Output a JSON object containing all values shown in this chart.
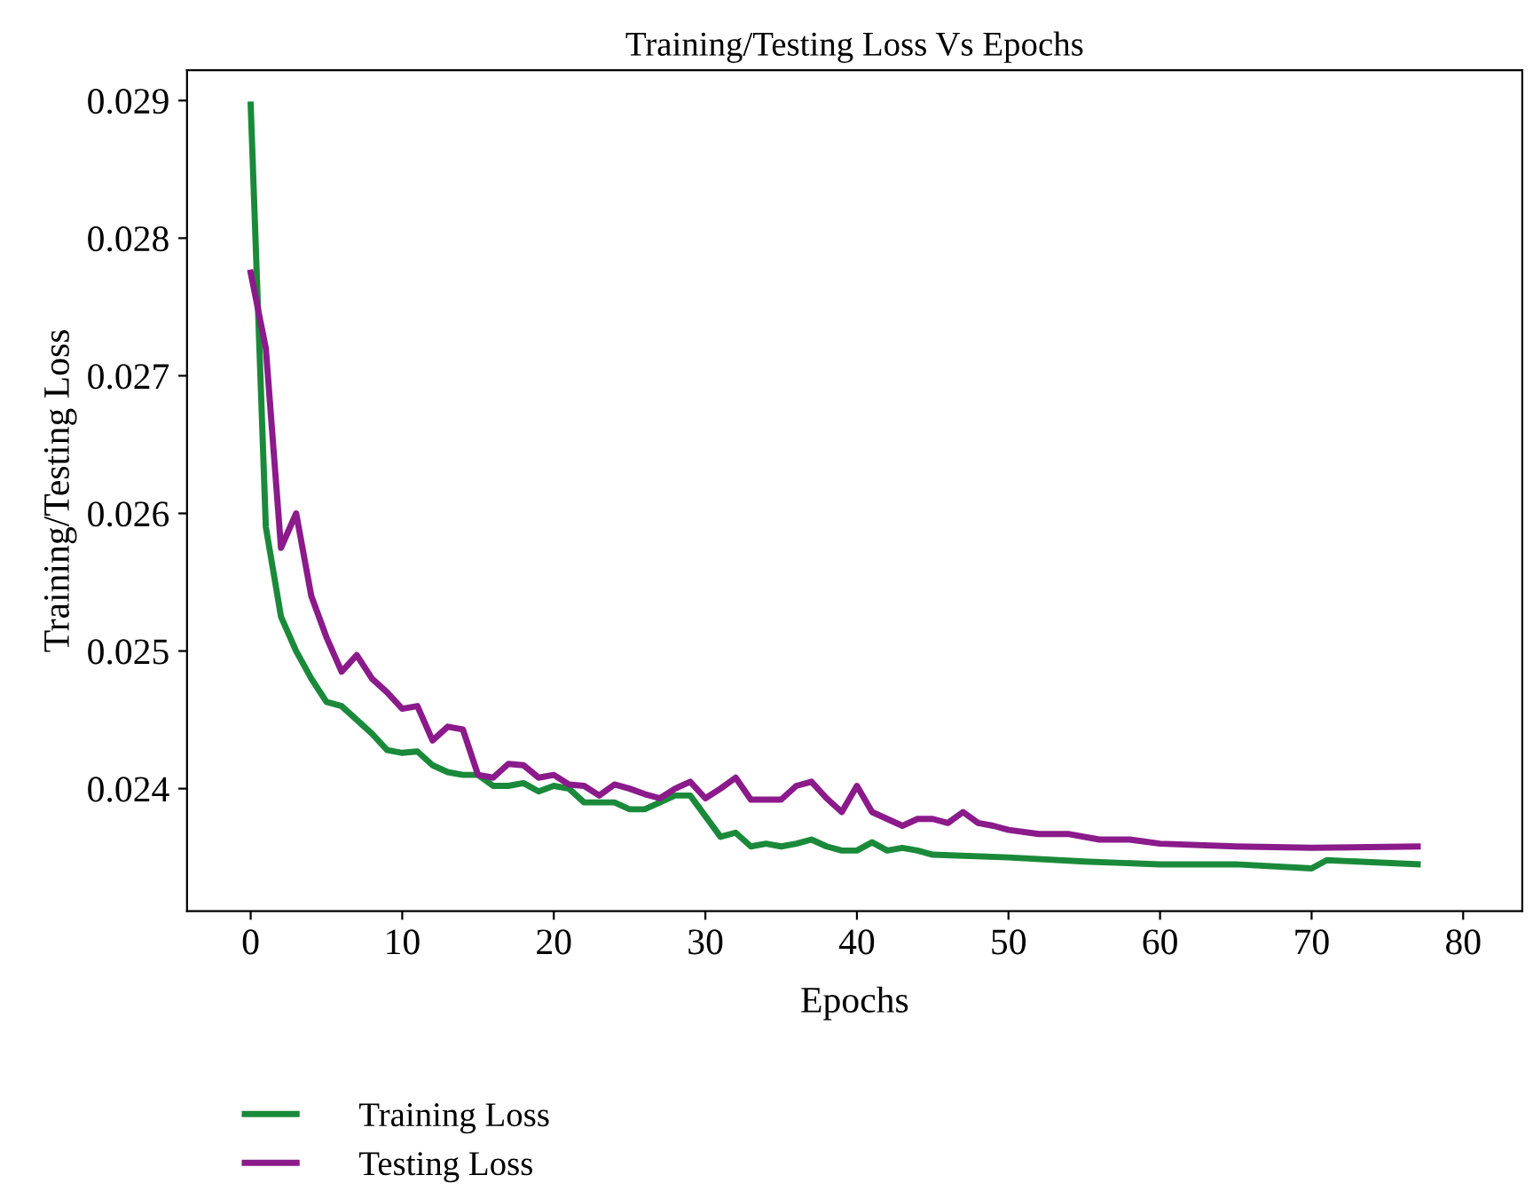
{
  "chart_data": {
    "type": "line",
    "title": "Training/Testing Loss Vs Epochs",
    "xlabel": "Epochs",
    "ylabel": "Training/Testing Loss",
    "xlim": [
      -4.2,
      83.9
    ],
    "ylim": [
      0.02311,
      0.02922
    ],
    "xticks": [
      0,
      10,
      20,
      30,
      40,
      50,
      60,
      70,
      80
    ],
    "yticks": [
      {
        "value": 0.024,
        "label": "0.024"
      },
      {
        "value": 0.025,
        "label": "0.025"
      },
      {
        "value": 0.026,
        "label": "0.026"
      },
      {
        "value": 0.027,
        "label": "0.027"
      },
      {
        "value": 0.028,
        "label": "0.028"
      },
      {
        "value": 0.029,
        "label": "0.029"
      }
    ],
    "grid": false,
    "legend": "bottom left",
    "marker": "none",
    "line_style": "solid",
    "series": [
      {
        "name": "Training Loss",
        "color": "#1a8a3a",
        "x": [
          0,
          1,
          2,
          3,
          4,
          5,
          6,
          7,
          8,
          9,
          10,
          11,
          12,
          13,
          14,
          15,
          16,
          17,
          18,
          19,
          20,
          21,
          22,
          23,
          24,
          25,
          26,
          27,
          28,
          29,
          30,
          31,
          32,
          33,
          34,
          35,
          36,
          37,
          38,
          39,
          40,
          41,
          42,
          43,
          44,
          45,
          50,
          55,
          60,
          65,
          70,
          71,
          77
        ],
        "values": [
          0.02897,
          0.0259,
          0.02525,
          0.025,
          0.0248,
          0.02463,
          0.0246,
          0.0245,
          0.0244,
          0.02428,
          0.02426,
          0.02427,
          0.02417,
          0.02412,
          0.0241,
          0.0241,
          0.02402,
          0.02402,
          0.02404,
          0.02398,
          0.02402,
          0.024,
          0.0239,
          0.0239,
          0.0239,
          0.02385,
          0.02385,
          0.0239,
          0.02395,
          0.02395,
          0.0238,
          0.02365,
          0.02368,
          0.02358,
          0.0236,
          0.02358,
          0.0236,
          0.02363,
          0.02358,
          0.02355,
          0.02355,
          0.02361,
          0.02355,
          0.02357,
          0.02355,
          0.02352,
          0.0235,
          0.02347,
          0.02345,
          0.02345,
          0.02342,
          0.02348,
          0.02345
        ]
      },
      {
        "name": "Testing Loss",
        "color": "#8b1a8b",
        "x": [
          0,
          1,
          2,
          3,
          4,
          5,
          6,
          7,
          8,
          9,
          10,
          11,
          12,
          13,
          14,
          15,
          16,
          17,
          18,
          19,
          20,
          21,
          22,
          23,
          24,
          25,
          26,
          27,
          28,
          29,
          30,
          31,
          32,
          33,
          34,
          35,
          36,
          37,
          38,
          39,
          40,
          41,
          42,
          43,
          44,
          45,
          46,
          47,
          48,
          49,
          50,
          52,
          54,
          56,
          58,
          60,
          65,
          70,
          77
        ],
        "values": [
          0.02775,
          0.0272,
          0.02575,
          0.026,
          0.0254,
          0.0251,
          0.02485,
          0.02497,
          0.0248,
          0.0247,
          0.02458,
          0.0246,
          0.02435,
          0.02445,
          0.02443,
          0.0241,
          0.02408,
          0.02418,
          0.02417,
          0.02408,
          0.0241,
          0.02403,
          0.02402,
          0.02395,
          0.02403,
          0.024,
          0.02396,
          0.02393,
          0.024,
          0.02405,
          0.02393,
          0.024,
          0.02408,
          0.02392,
          0.02392,
          0.02392,
          0.02402,
          0.02405,
          0.02393,
          0.02383,
          0.02402,
          0.02383,
          0.02378,
          0.02373,
          0.02378,
          0.02378,
          0.02375,
          0.02383,
          0.02375,
          0.02373,
          0.0237,
          0.02367,
          0.02367,
          0.02363,
          0.02363,
          0.0236,
          0.02358,
          0.02357,
          0.02358
        ]
      }
    ]
  }
}
